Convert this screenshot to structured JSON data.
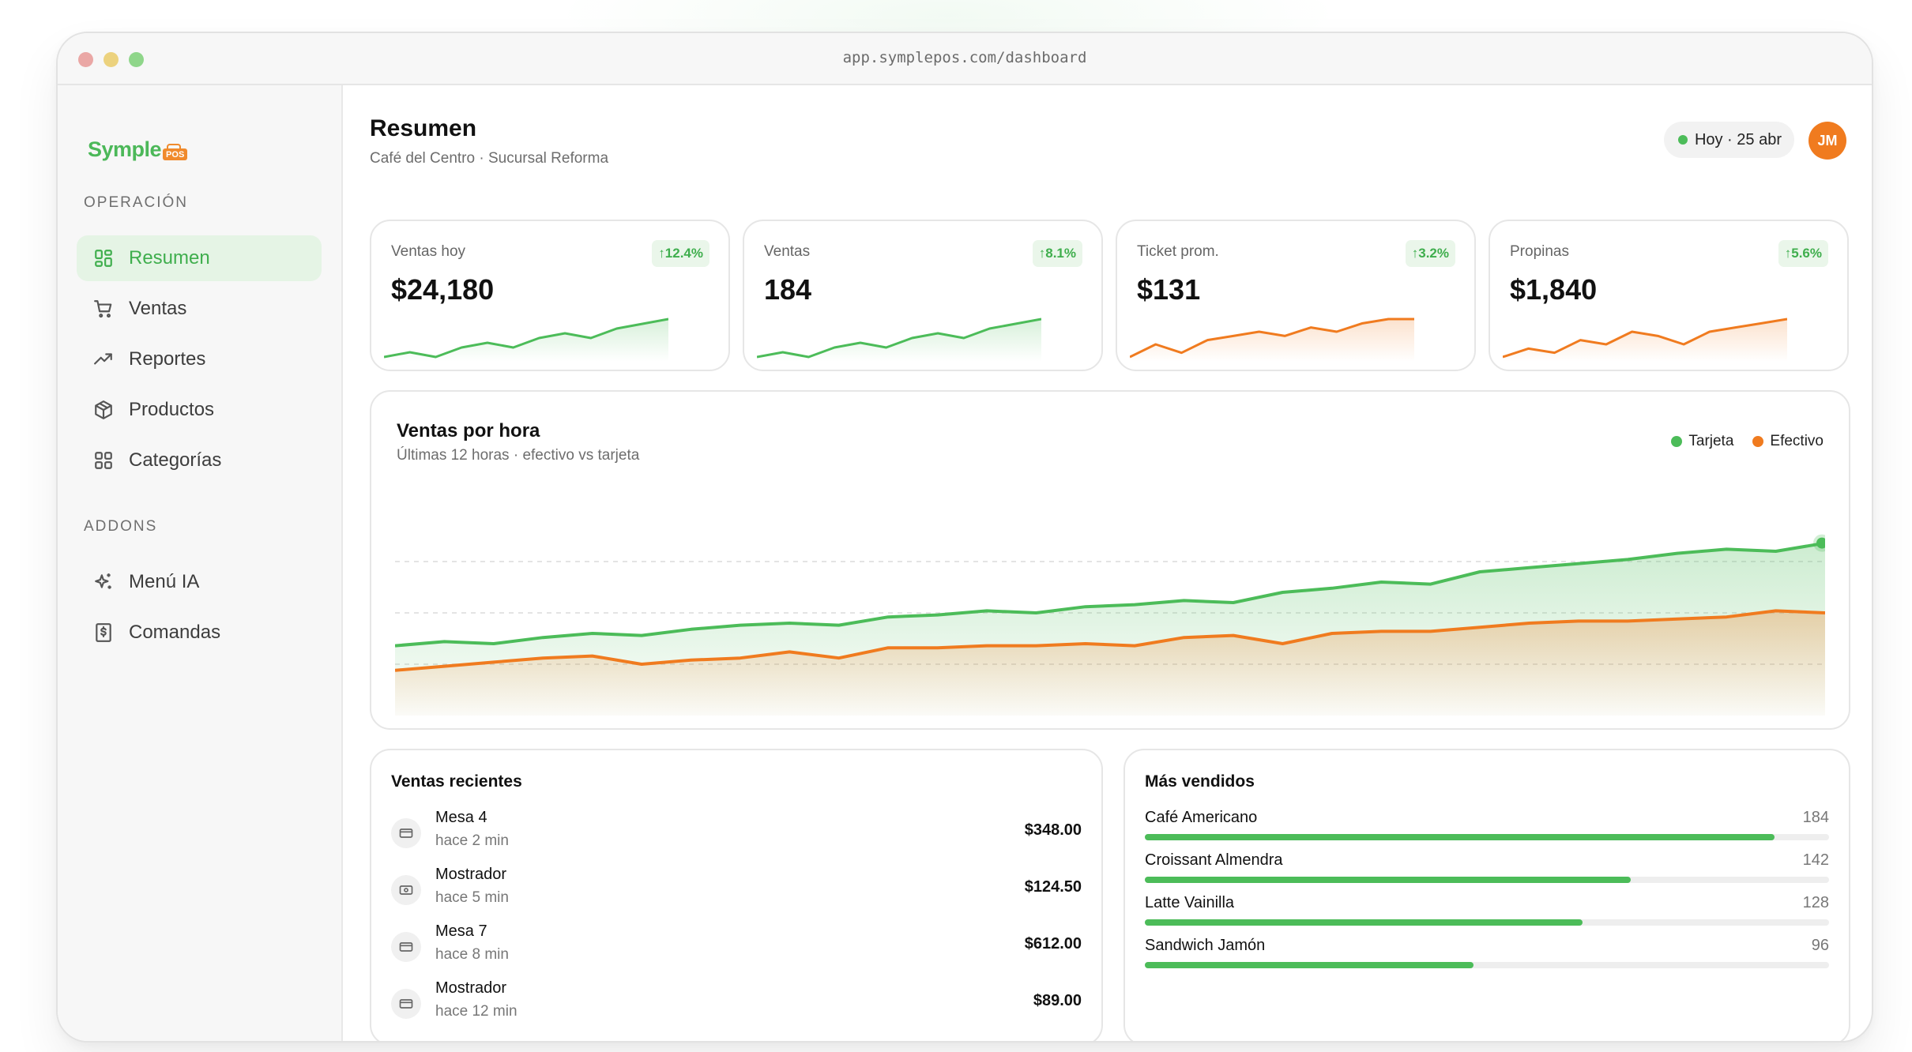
{
  "browser": {
    "url": "app.symplepos.com/dashboard"
  },
  "brand": {
    "name": "Symple",
    "badge": "POS"
  },
  "sidebar": {
    "sections": [
      {
        "label": "OPERACIÓN",
        "items": [
          {
            "label": "Resumen",
            "icon": "grid-icon",
            "active": true
          },
          {
            "label": "Ventas",
            "icon": "cart-icon"
          },
          {
            "label": "Reportes",
            "icon": "trending-up-icon"
          },
          {
            "label": "Productos",
            "icon": "box-icon"
          },
          {
            "label": "Categorías",
            "icon": "grid-icon"
          }
        ]
      },
      {
        "label": "ADDONS",
        "items": [
          {
            "label": "Menú IA",
            "icon": "sparkles-icon"
          },
          {
            "label": "Comandas",
            "icon": "receipt-icon"
          }
        ]
      }
    ]
  },
  "header": {
    "title": "Resumen",
    "subtitle": "Café del Centro · Sucursal Reforma",
    "date_pill": "Hoy · 25 abr",
    "avatar": "JM"
  },
  "kpis": [
    {
      "label": "Ventas hoy",
      "value": "$24,180",
      "change": "↑12.4%",
      "trend_color": "#4cbc59",
      "trend": [
        3,
        4,
        3,
        5,
        6,
        5,
        7,
        8,
        7,
        9,
        10,
        11
      ]
    },
    {
      "label": "Ventas",
      "value": "184",
      "change": "↑8.1%",
      "trend_color": "#4cbc59",
      "trend": [
        3,
        4,
        3,
        5,
        6,
        5,
        7,
        8,
        7,
        9,
        10,
        11
      ]
    },
    {
      "label": "Ticket prom.",
      "value": "$131",
      "change": "↑3.2%",
      "trend_color": "#f07b1f",
      "trend": [
        3,
        6,
        4,
        7,
        8,
        9,
        8,
        10,
        9,
        11,
        12,
        12
      ]
    },
    {
      "label": "Propinas",
      "value": "$1,840",
      "change": "↑5.6%",
      "trend_color": "#f07b1f",
      "trend": [
        3,
        5,
        4,
        7,
        6,
        9,
        8,
        6,
        9,
        10,
        11,
        12
      ]
    }
  ],
  "hourly": {
    "title": "Ventas por hora",
    "subtitle": "Últimas 12 horas · efectivo vs tarjeta",
    "legend": [
      {
        "name": "Tarjeta",
        "color": "#4cbc59"
      },
      {
        "name": "Efectivo",
        "color": "#f07b1f"
      }
    ]
  },
  "chart_data": {
    "type": "area",
    "title": "Ventas por hora",
    "subtitle": "Últimas 12 horas · efectivo vs tarjeta",
    "grid": true,
    "legend_position": "top-right",
    "y_range": [
      0,
      100
    ],
    "series": [
      {
        "name": "Tarjeta",
        "color": "#4cbc59",
        "values": [
          34,
          36,
          35,
          38,
          40,
          39,
          42,
          44,
          45,
          44,
          48,
          49,
          51,
          50,
          53,
          54,
          56,
          55,
          60,
          62,
          65,
          64,
          70,
          72,
          74,
          76,
          79,
          81,
          80,
          84
        ]
      },
      {
        "name": "Efectivo",
        "color": "#f07b1f",
        "values": [
          22,
          24,
          26,
          28,
          29,
          25,
          27,
          28,
          31,
          28,
          33,
          33,
          34,
          34,
          35,
          34,
          38,
          39,
          35,
          40,
          41,
          41,
          43,
          45,
          46,
          46,
          47,
          48,
          51,
          50
        ]
      }
    ]
  },
  "recent_sales": {
    "title": "Ventas recientes",
    "rows": [
      {
        "name": "Mesa 4",
        "time": "hace 2 min",
        "amount": "$348.00",
        "icon": "card-icon"
      },
      {
        "name": "Mostrador",
        "time": "hace 5 min",
        "amount": "$124.50",
        "icon": "cash-icon"
      },
      {
        "name": "Mesa 7",
        "time": "hace 8 min",
        "amount": "$612.00",
        "icon": "card-icon"
      },
      {
        "name": "Mostrador",
        "time": "hace 12 min",
        "amount": "$89.00",
        "icon": "card-icon"
      }
    ]
  },
  "top_products": {
    "title": "Más vendidos",
    "max": 200,
    "rows": [
      {
        "name": "Café Americano",
        "count": "184",
        "value": 184
      },
      {
        "name": "Croissant Almendra",
        "count": "142",
        "value": 142
      },
      {
        "name": "Latte Vainilla",
        "count": "128",
        "value": 128
      },
      {
        "name": "Sandwich Jamón",
        "count": "96",
        "value": 96
      }
    ]
  }
}
